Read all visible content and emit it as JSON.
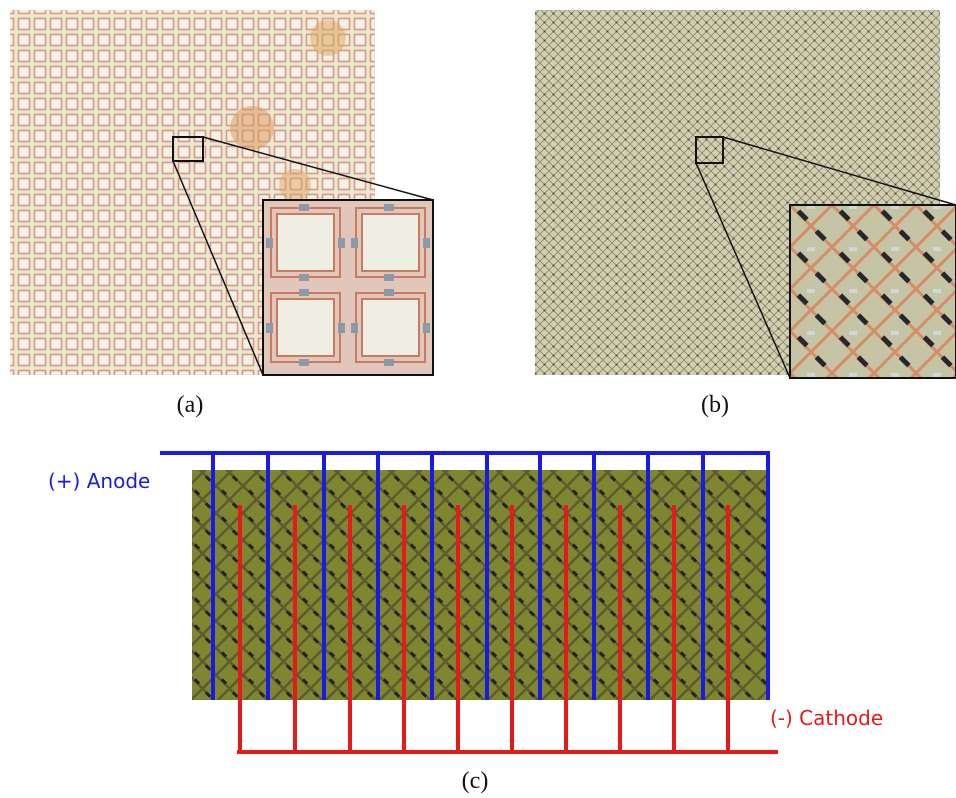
{
  "panels": {
    "a": {
      "label": "(a)"
    },
    "b": {
      "label": "(b)"
    },
    "c": {
      "label": "(c)",
      "anode": "(+) Anode",
      "cathode": "(-) Cathode"
    }
  }
}
